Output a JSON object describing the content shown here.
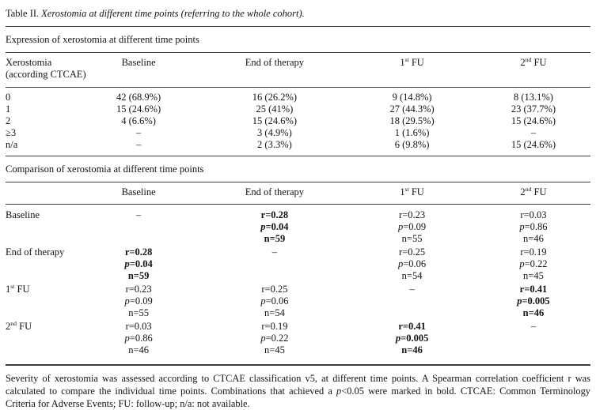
{
  "page": {
    "background": "#ffffff",
    "text_color": "#131313",
    "rule_color": "#3c3c3c"
  },
  "title": {
    "label": "Table II.",
    "caption": "Xerostomia at different time points (referring to the whole cohort)."
  },
  "expression": {
    "heading": "Expression of xerostomia at different time points",
    "header": {
      "col1_line1": "Xerostomia",
      "col1_line2": "(according CTCAE)",
      "baseline": "Baseline",
      "end_of_therapy": "End of therapy",
      "fu1": {
        "base": "1",
        "sup": "st",
        "rest": " FU"
      },
      "fu2": {
        "base": "2",
        "sup": "nd",
        "rest": " FU"
      }
    },
    "rows": [
      {
        "label": "0",
        "values": [
          "42 (68.9%)",
          "16 (26.2%)",
          "9 (14.8%)",
          "8 (13.1%)"
        ]
      },
      {
        "label": "1",
        "values": [
          "15 (24.6%)",
          "25 (41%)",
          "27 (44.3%)",
          "23 (37.7%)"
        ]
      },
      {
        "label": "2",
        "values": [
          "4 (6.6%)",
          "15 (24.6%)",
          "18 (29.5%)",
          "15 (24.6%)"
        ]
      },
      {
        "label": "≥3",
        "values": [
          "–",
          "3 (4.9%)",
          "1 (1.6%)",
          "–"
        ]
      },
      {
        "label": "n/a",
        "values": [
          "–",
          "2 (3.3%)",
          "6 (9.8%)",
          "15 (24.6%)"
        ]
      }
    ]
  },
  "comparison": {
    "heading": "Comparison of xerostomia at different time points",
    "header": {
      "col1": "",
      "baseline": "Baseline",
      "end_of_therapy": "End of therapy",
      "fu1": {
        "base": "1",
        "sup": "st",
        "rest": " FU"
      },
      "fu2": {
        "base": "2",
        "sup": "nd",
        "rest": " FU"
      }
    },
    "rows": [
      {
        "label": {
          "text": "Baseline"
        },
        "cells": [
          {
            "dash": "–"
          },
          {
            "r": "r=0.28",
            "p": "p=0.04",
            "n": "n=59",
            "bold": true
          },
          {
            "r": "r=0.23",
            "p": "p=0.09",
            "n": "n=55",
            "bold": false
          },
          {
            "r": "r=0.03",
            "p": "p=0.86",
            "n": "n=46",
            "bold": false
          }
        ]
      },
      {
        "label": {
          "text": "End of therapy"
        },
        "cells": [
          {
            "r": "r=0.28",
            "p": "p=0.04",
            "n": "n=59",
            "bold": true
          },
          {
            "dash": "–"
          },
          {
            "r": "r=0.25",
            "p": "p=0.06",
            "n": "n=54",
            "bold": false
          },
          {
            "r": "r=0.19",
            "p": "p=0.22",
            "n": "n=45",
            "bold": false
          }
        ]
      },
      {
        "label": {
          "text": "1",
          "sup": "st",
          "rest": " FU"
        },
        "cells": [
          {
            "r": "r=0.23",
            "p": "p=0.09",
            "n": "n=55",
            "bold": false
          },
          {
            "r": "r=0.25",
            "p": "p=0.06",
            "n": "n=54",
            "bold": false
          },
          {
            "dash": "–"
          },
          {
            "r": "r=0.41",
            "p": "p=0.005",
            "n": "n=46",
            "bold": true
          }
        ]
      },
      {
        "label": {
          "text": "2",
          "sup": "nd",
          "rest": " FU"
        },
        "cells": [
          {
            "r": "r=0.03",
            "p": "p=0.86",
            "n": "n=46",
            "bold": false
          },
          {
            "r": "r=0.19",
            "p": "p=0.22",
            "n": "n=45",
            "bold": false
          },
          {
            "r": "r=0.41",
            "p": "p=0.005",
            "n": "n=46",
            "bold": true
          },
          {
            "dash": "–"
          }
        ]
      }
    ]
  },
  "footnote": {
    "part1": "Severity of xerostomia was assessed according to CTCAE classification v5, at different time points. A Spearman correlation coefficient r was calculated to compare the individual time points. Combinations that achieved a ",
    "p_italic": "p",
    "part2": "<0.05 were marked in bold. CTCAE: Common Terminology Criteria for Adverse Events; FU: follow-up; n/a: not available."
  }
}
